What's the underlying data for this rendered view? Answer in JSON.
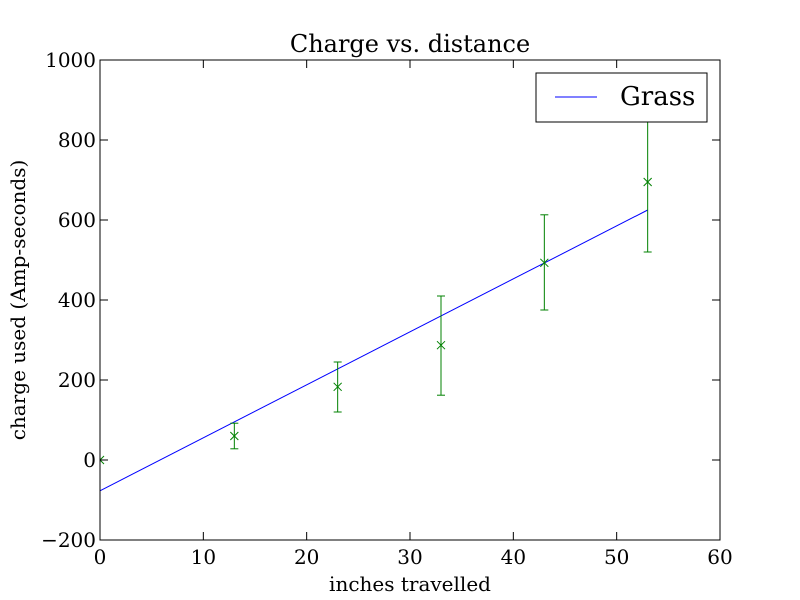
{
  "chart_data": {
    "type": "line",
    "title": "Charge vs. distance",
    "xlabel": "inches travelled",
    "ylabel": "charge used (Amp-seconds)",
    "xlim": [
      0,
      60
    ],
    "ylim": [
      -200,
      1000
    ],
    "xticks": [
      "0",
      "10",
      "20",
      "30",
      "40",
      "50",
      "60"
    ],
    "yticks": [
      "−200",
      "0",
      "200",
      "400",
      "600",
      "800",
      "1000"
    ],
    "xtick_values": [
      0,
      10,
      20,
      30,
      40,
      50,
      60
    ],
    "ytick_values": [
      -200,
      0,
      200,
      400,
      600,
      800,
      1000
    ],
    "grid": false,
    "legend_position": "top-right",
    "series": [
      {
        "name": "Grass",
        "kind": "line",
        "color": "#0000ff",
        "x": [
          0,
          53
        ],
        "y": [
          -77,
          625
        ]
      },
      {
        "kind": "errorbar",
        "color": "#008000",
        "marker": "x",
        "x": [
          0,
          13,
          23,
          33,
          43,
          53
        ],
        "y": [
          0,
          60,
          183,
          287,
          493,
          695
        ],
        "yerr_low": [
          0,
          32,
          63,
          125,
          118,
          175
        ],
        "yerr_high": [
          0,
          32,
          62,
          123,
          120,
          155
        ]
      }
    ]
  }
}
